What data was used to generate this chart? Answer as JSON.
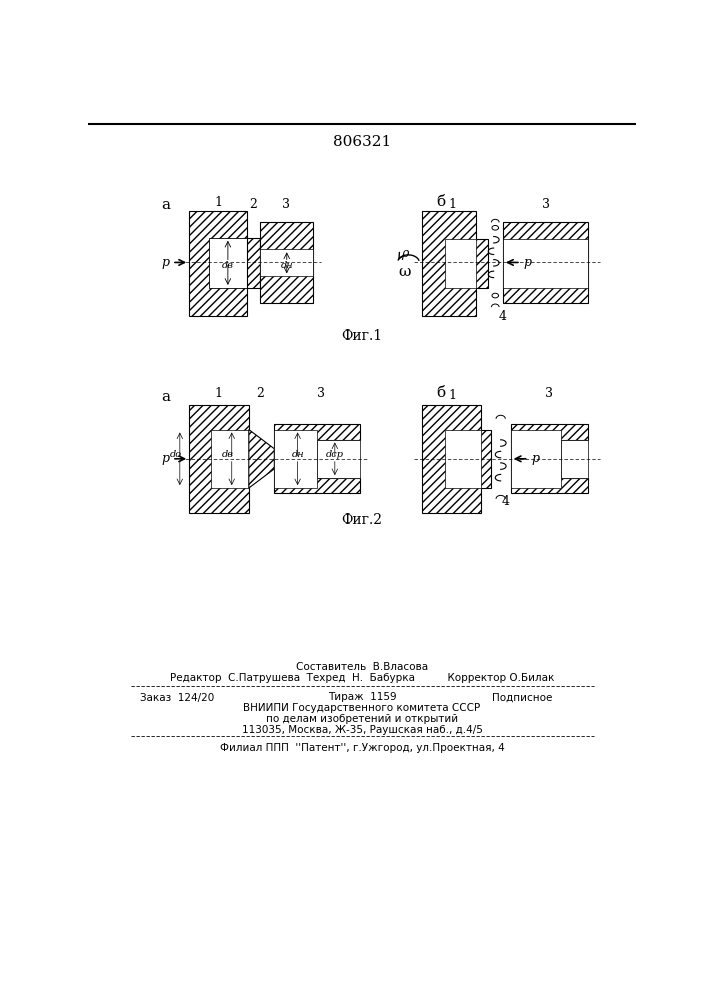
{
  "patent_number": "806321",
  "fig1_label": "Фиг.1",
  "fig2_label": "Фиг.2",
  "bg_color": "#ffffff",
  "bottom_text": [
    "Составитель  В.Власова",
    "Редактор  С.Патрушева  Техред  Н.  Бабурка          Корректор О.Билак",
    "Заказ  124/20",
    "Тираж  1159",
    "Подписное",
    "ВНИИПИ Государственного комитета СССР",
    "по делам изобретений и открытий",
    "113035, Москва, Ж-35, Раушская наб., д.4/5",
    "Филиал ППП  ''Патент'', г.Ужгород, ул.Проектная, 4"
  ]
}
